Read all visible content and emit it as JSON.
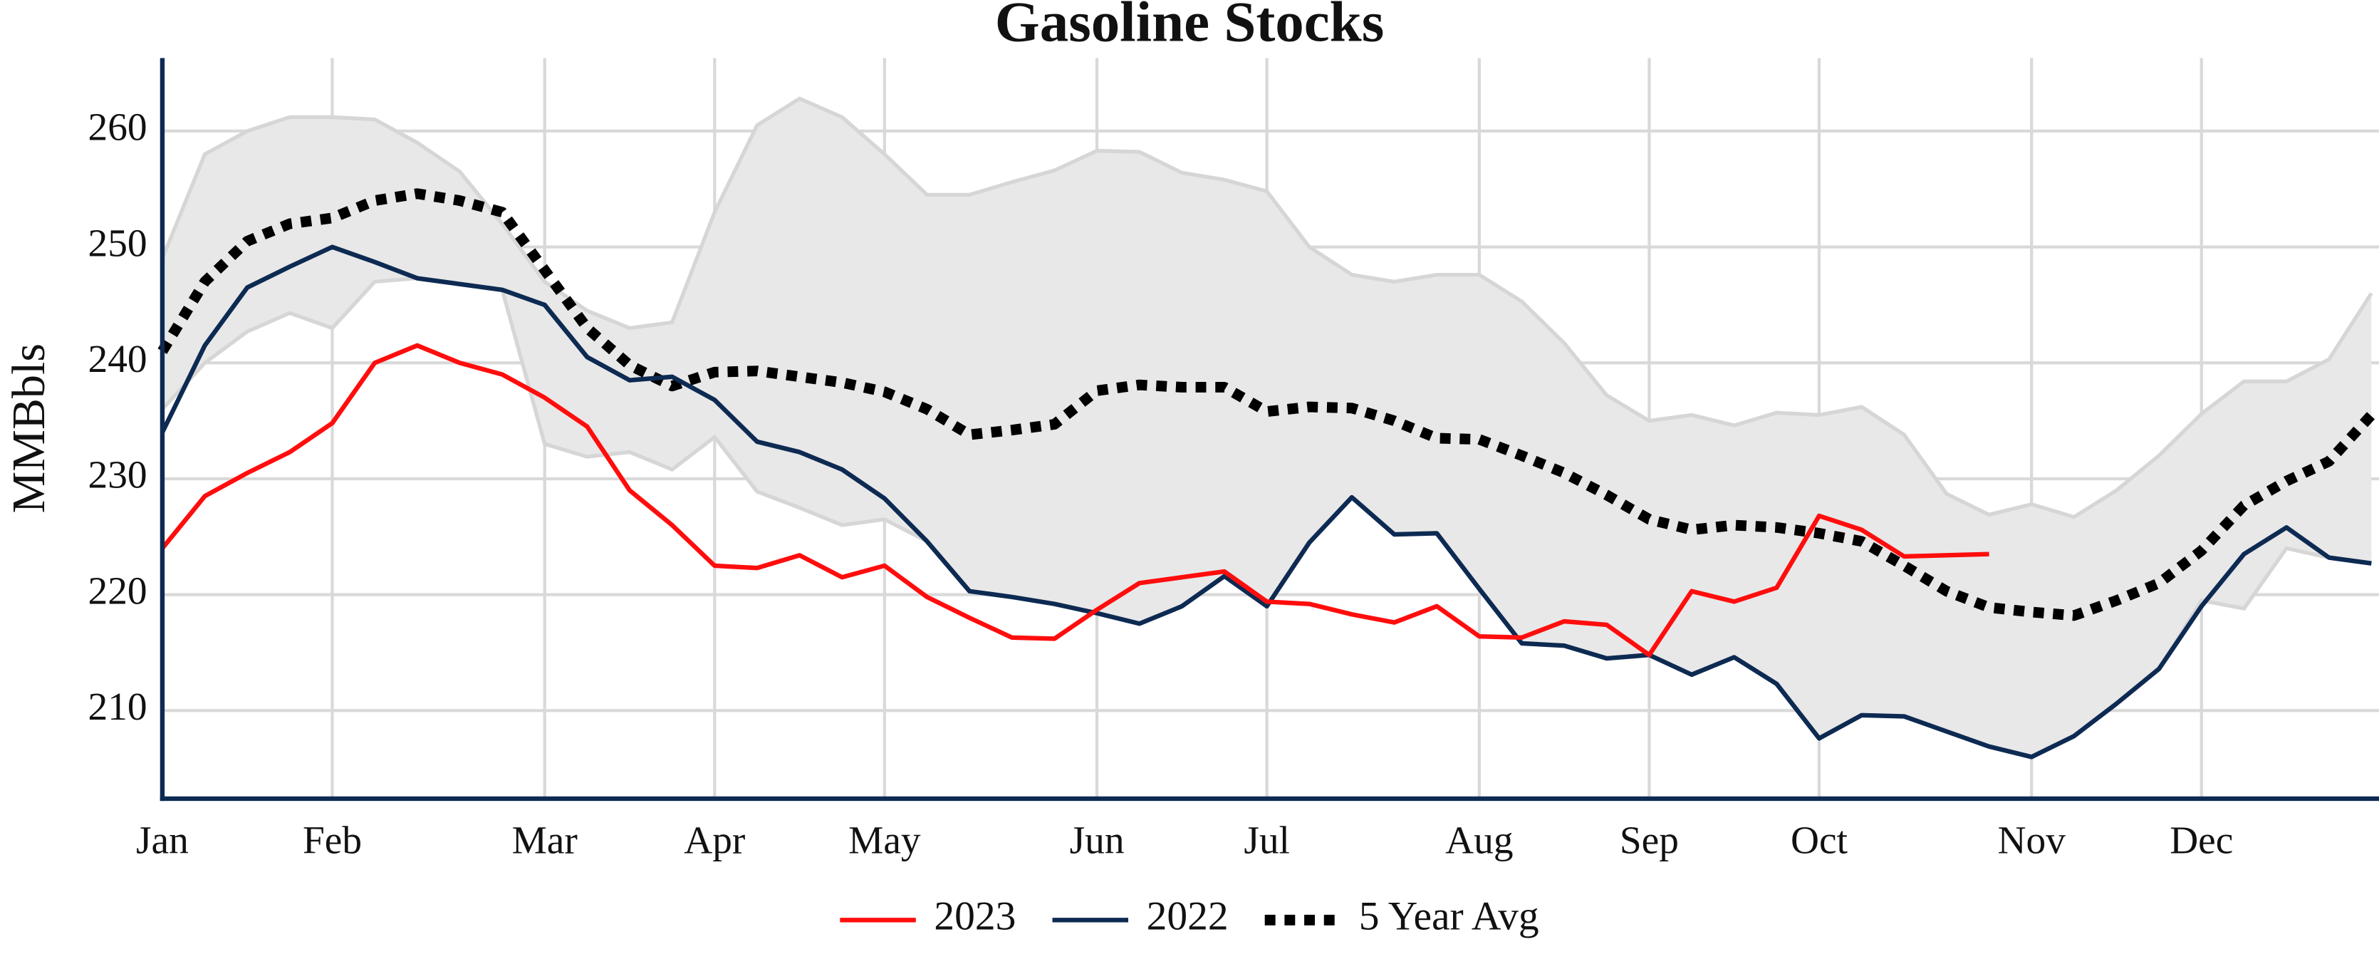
{
  "chart_data": {
    "type": "line",
    "title": "Gasoline Stocks",
    "y_label": "MMBbls",
    "categories": [
      "Jan",
      null,
      null,
      null,
      "Feb",
      null,
      null,
      null,
      null,
      "Mar",
      null,
      null,
      null,
      "Apr",
      null,
      null,
      null,
      "May",
      null,
      null,
      null,
      null,
      "Jun",
      null,
      null,
      null,
      "Jul",
      null,
      null,
      null,
      null,
      "Aug",
      null,
      null,
      null,
      "Sep",
      null,
      null,
      null,
      "Oct",
      null,
      null,
      null,
      null,
      "Nov",
      null,
      null,
      null,
      "Dec",
      null,
      null,
      null,
      null
    ],
    "ylim": [
      202.4,
      266.3
    ],
    "yticks": [
      210,
      220,
      230,
      240,
      250,
      260
    ],
    "grid": true,
    "legend": "bottom",
    "range": {
      "color": "#e8e8e8",
      "edge_color": "#d6d6d6",
      "upper": [
        249,
        258,
        260,
        261.2,
        261.2,
        261,
        259,
        256.5,
        252,
        247,
        244.5,
        243,
        243.5,
        253,
        260.5,
        262.8,
        261.2,
        258,
        254.5,
        254.5,
        255.6,
        256.6,
        258.3,
        258.2,
        256.4,
        255.8,
        254.8,
        250,
        247.6,
        247,
        247.6,
        247.6,
        245.3,
        241.7,
        237.2,
        235,
        235.5,
        234.6,
        235.7,
        235.5,
        236.2,
        233.8,
        228.7,
        226.9,
        227.8,
        226.7,
        229,
        232,
        235.6,
        238.4,
        238.4,
        240.3,
        246
      ],
      "lower": [
        236,
        240,
        242.7,
        244.3,
        243,
        247,
        247.3,
        246.8,
        246.3,
        233,
        231.9,
        232.3,
        230.8,
        233.6,
        228.9,
        227.5,
        226,
        226.5,
        224.6,
        220.3,
        219.8,
        219.2,
        218.4,
        217.5,
        219,
        221.6,
        219,
        224.5,
        228.4,
        225.2,
        225.3,
        220.5,
        215.8,
        215.6,
        214.5,
        214.8,
        213.1,
        214.6,
        212.3,
        207.6,
        209.6,
        209.5,
        208.2,
        206.9,
        206,
        207.8,
        210.6,
        213.6,
        219.5,
        218.8,
        224,
        223.2,
        222.7
      ]
    },
    "series": [
      {
        "name": "2023",
        "color": "#ff0d0d",
        "dash": "solid",
        "values": [
          224,
          228.5,
          230.5,
          232.3,
          234.8,
          240,
          241.5,
          240,
          239,
          237,
          234.5,
          229,
          226,
          222.5,
          222.3,
          223.4,
          221.5,
          222.5,
          219.8,
          218,
          216.3,
          216.2,
          218.7,
          221,
          221.5,
          222,
          219.4,
          219.2,
          218.3,
          217.6,
          219,
          216.4,
          216.3,
          217.7,
          217.4,
          214.8,
          220.3,
          219.4,
          220.6,
          226.8,
          225.6,
          223.3,
          223.4,
          223.5,
          null,
          null,
          null,
          null,
          null,
          null,
          null,
          null,
          null
        ]
      },
      {
        "name": "2022",
        "color": "#0d2a52",
        "dash": "solid",
        "values": [
          234,
          241.5,
          246.5,
          248.3,
          250,
          248.7,
          247.3,
          246.8,
          246.3,
          245,
          240.5,
          238.5,
          238.8,
          236.8,
          233.2,
          232.3,
          230.8,
          228.3,
          224.6,
          220.3,
          219.8,
          219.2,
          218.4,
          217.5,
          219,
          221.6,
          219,
          224.5,
          228.4,
          225.2,
          225.3,
          220.5,
          215.8,
          215.6,
          214.5,
          214.8,
          213.1,
          214.6,
          212.3,
          207.6,
          209.6,
          209.5,
          208.2,
          206.9,
          206,
          207.8,
          210.6,
          213.6,
          219,
          223.5,
          225.8,
          223.2,
          222.7
        ]
      },
      {
        "name": "5 Year Avg",
        "color": "#000000",
        "dash": "dotted",
        "values": [
          241,
          247,
          250.5,
          252,
          252.5,
          254,
          254.6,
          254,
          253,
          248,
          243,
          239.8,
          238,
          239.2,
          239.3,
          238.8,
          238.3,
          237.5,
          236,
          233.8,
          234.2,
          234.7,
          237.6,
          238.1,
          237.9,
          237.9,
          235.8,
          236.2,
          236.1,
          235,
          233.5,
          233.4,
          232,
          230.5,
          228.6,
          226.5,
          225.6,
          226,
          225.8,
          225.3,
          224.6,
          222.5,
          220.3,
          218.9,
          218.5,
          218.2,
          219.5,
          221,
          223.8,
          227.7,
          229.8,
          231.5,
          235.5
        ]
      }
    ]
  }
}
